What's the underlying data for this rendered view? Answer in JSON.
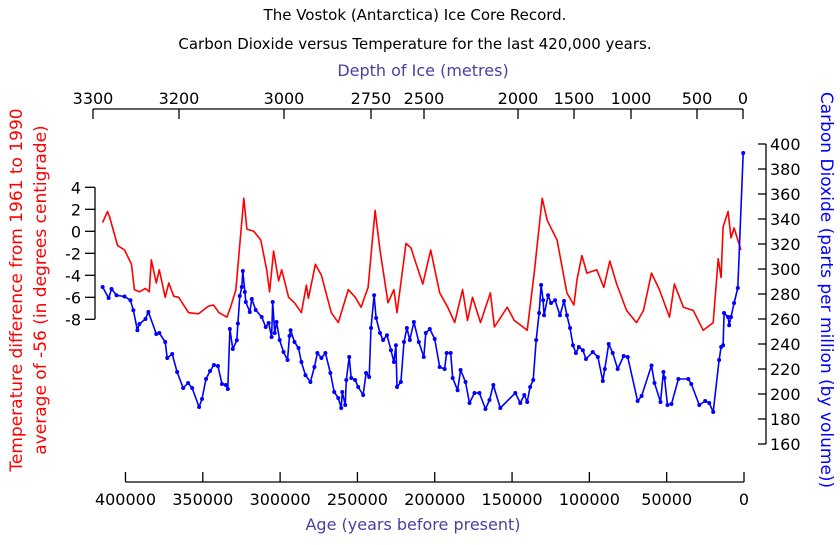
{
  "title": "The Vostok (Antarctica) Ice Core Record.",
  "subtitle": "Carbon Dioxide versus Temperature for the last 420,000 years.",
  "chart_data": {
    "type": "line",
    "title": "The Vostok (Antarctica) Ice Core Record.",
    "subtitle": "Carbon Dioxide versus Temperature for the last 420,000 years.",
    "xlabel": "Age (years before present)",
    "x2label": "Depth of Ice (metres)",
    "ylabel_left_line1": "Temperature difference from 1961 to 1990",
    "ylabel_left_line2": "average of -56 (in degrees centigrade)",
    "ylabel_right": "Carbon Dioxide (parts per million (by volume))",
    "xlim": [
      400000,
      0
    ],
    "ylim_left": [
      -8,
      4
    ],
    "ylim_right": [
      160,
      400
    ],
    "grid": false,
    "legend": "none",
    "x_ticks": [
      "400000",
      "350000",
      "300000",
      "250000",
      "200000",
      "150000",
      "100000",
      "50000",
      "0"
    ],
    "x2_ticks": [
      "3300",
      "3200",
      "3000",
      "2750",
      "2500",
      "2000",
      "1500",
      "1000",
      "500",
      "0"
    ],
    "y_left_ticks": [
      "4",
      "2",
      "0",
      "-2",
      "-4",
      "-6",
      "-8"
    ],
    "y_right_ticks": [
      "400",
      "380",
      "360",
      "340",
      "320",
      "300",
      "280",
      "260",
      "240",
      "220",
      "200",
      "180",
      "160"
    ],
    "colors": {
      "temperature": "#ff0000",
      "co2": "#0000ff",
      "axis_label": "#4b3fa0"
    },
    "series": [
      {
        "axis": "left",
        "color": "#ff0000",
        "points": [
          [
            414800,
            0.8
          ],
          [
            411600,
            1.8
          ],
          [
            410300,
            1.3
          ],
          [
            405100,
            -1.3
          ],
          [
            400600,
            -1.7
          ],
          [
            396100,
            -3
          ],
          [
            394200,
            -5.3
          ],
          [
            391000,
            -5.5
          ],
          [
            387100,
            -5.2
          ],
          [
            384600,
            -5.5
          ],
          [
            383300,
            -2.6
          ],
          [
            380100,
            -4.7
          ],
          [
            378100,
            -3.5
          ],
          [
            374300,
            -6
          ],
          [
            372000,
            -4.7
          ],
          [
            368800,
            -5.9
          ],
          [
            365600,
            -6
          ],
          [
            359200,
            -7.4
          ],
          [
            352700,
            -7.5
          ],
          [
            346300,
            -6.8
          ],
          [
            343100,
            -6.7
          ],
          [
            339500,
            -7.4
          ],
          [
            334400,
            -7.8
          ],
          [
            332000,
            -6.9
          ],
          [
            328600,
            -5.3
          ],
          [
            323500,
            3.0
          ],
          [
            321500,
            0.2
          ],
          [
            317000,
            0
          ],
          [
            312500,
            -0.8
          ],
          [
            308700,
            -3.5
          ],
          [
            306800,
            -5.5
          ],
          [
            304200,
            -1.8
          ],
          [
            301000,
            -4.5
          ],
          [
            299000,
            -3.5
          ],
          [
            294500,
            -6
          ],
          [
            290700,
            -6.5
          ],
          [
            286200,
            -7.4
          ],
          [
            283000,
            -4.9
          ],
          [
            281700,
            -6.1
          ],
          [
            277200,
            -3
          ],
          [
            273300,
            -4
          ],
          [
            266900,
            -7.4
          ],
          [
            262400,
            -8.3
          ],
          [
            255900,
            -5.3
          ],
          [
            251400,
            -6
          ],
          [
            247600,
            -6.9
          ],
          [
            243100,
            -5.1
          ],
          [
            238600,
            1.9
          ],
          [
            235400,
            -1.7
          ],
          [
            230200,
            -6.5
          ],
          [
            226400,
            -5.3
          ],
          [
            224400,
            -7.4
          ],
          [
            218600,
            -1.1
          ],
          [
            215400,
            -1.5
          ],
          [
            207700,
            -4.8
          ],
          [
            202600,
            -1.7
          ],
          [
            196800,
            -5.6
          ],
          [
            191600,
            -6.9
          ],
          [
            187100,
            -8.3
          ],
          [
            182000,
            -5.3
          ],
          [
            178800,
            -8.1
          ],
          [
            175600,
            -6
          ],
          [
            170400,
            -8.3
          ],
          [
            164000,
            -5.6
          ],
          [
            161400,
            -8.7
          ],
          [
            153100,
            -6.9
          ],
          [
            148600,
            -8.1
          ],
          [
            140200,
            -9
          ],
          [
            135700,
            -3.8
          ],
          [
            130500,
            3
          ],
          [
            127300,
            1
          ],
          [
            120900,
            -0.8
          ],
          [
            114500,
            -5.6
          ],
          [
            110000,
            -6.7
          ],
          [
            108000,
            -4.4
          ],
          [
            104800,
            -2.2
          ],
          [
            101600,
            -3.8
          ],
          [
            95200,
            -3.5
          ],
          [
            90700,
            -5.1
          ],
          [
            86800,
            -2.7
          ],
          [
            82300,
            -4.8
          ],
          [
            75900,
            -7.2
          ],
          [
            69500,
            -8.3
          ],
          [
            65000,
            -7.2
          ],
          [
            59800,
            -3.8
          ],
          [
            54700,
            -5.3
          ],
          [
            48200,
            -7.8
          ],
          [
            45000,
            -4.8
          ],
          [
            39200,
            -6.9
          ],
          [
            32800,
            -7.2
          ],
          [
            26400,
            -9
          ],
          [
            19900,
            -8.3
          ],
          [
            16700,
            -2.5
          ],
          [
            14800,
            -4.2
          ],
          [
            13500,
            0.4
          ],
          [
            10300,
            1.8
          ],
          [
            8400,
            -0.6
          ],
          [
            6400,
            0.3
          ],
          [
            2000,
            -1.7
          ]
        ]
      },
      {
        "axis": "right",
        "color": "#0000ff",
        "points": [
          [
            414800,
            285.6
          ],
          [
            410900,
            276.8
          ],
          [
            409000,
            284
          ],
          [
            405800,
            279
          ],
          [
            400600,
            278
          ],
          [
            396800,
            275
          ],
          [
            394900,
            267
          ],
          [
            392300,
            251
          ],
          [
            391000,
            256
          ],
          [
            387100,
            260
          ],
          [
            385200,
            265.6
          ],
          [
            380100,
            248
          ],
          [
            378100,
            248.8
          ],
          [
            374300,
            241.6
          ],
          [
            373000,
            228.8
          ],
          [
            369800,
            232
          ],
          [
            366600,
            217.6
          ],
          [
            362700,
            204.8
          ],
          [
            359500,
            208.8
          ],
          [
            356900,
            204.8
          ],
          [
            352400,
            189.6
          ],
          [
            350500,
            196
          ],
          [
            347900,
            212
          ],
          [
            345300,
            218.4
          ],
          [
            342800,
            223.2
          ],
          [
            340200,
            222.4
          ],
          [
            337600,
            208
          ],
          [
            335100,
            207.2
          ],
          [
            333800,
            204
          ],
          [
            332500,
            252
          ],
          [
            330600,
            236
          ],
          [
            328000,
            243
          ],
          [
            327300,
            256.4
          ],
          [
            326100,
            278.4
          ],
          [
            324800,
            285.6
          ],
          [
            324100,
            298.4
          ],
          [
            322800,
            281.6
          ],
          [
            322200,
            273.6
          ],
          [
            319600,
            265.6
          ],
          [
            318300,
            276
          ],
          [
            315800,
            267.2
          ],
          [
            311900,
            261.6
          ],
          [
            309300,
            253.6
          ],
          [
            307400,
            256.8
          ],
          [
            305500,
            245.6
          ],
          [
            304800,
            273.6
          ],
          [
            303500,
            248.8
          ],
          [
            302300,
            257.6
          ],
          [
            300300,
            243.2
          ],
          [
            297800,
            233.6
          ],
          [
            295200,
            227.2
          ],
          [
            293900,
            246.4
          ],
          [
            293200,
            251
          ],
          [
            290700,
            241.6
          ],
          [
            288100,
            236.8
          ],
          [
            286200,
            225.6
          ],
          [
            283600,
            215
          ],
          [
            280400,
            209.6
          ],
          [
            277800,
            221.6
          ],
          [
            275900,
            232.8
          ],
          [
            273300,
            228.8
          ],
          [
            270700,
            232.8
          ],
          [
            267500,
            216.8
          ],
          [
            265000,
            201.6
          ],
          [
            262400,
            196.8
          ],
          [
            260500,
            188.8
          ],
          [
            259800,
            201.6
          ],
          [
            257900,
            191.2
          ],
          [
            257200,
            211.2
          ],
          [
            255300,
            229.6
          ],
          [
            254000,
            212.8
          ],
          [
            251500,
            211.2
          ],
          [
            249500,
            205.6
          ],
          [
            246300,
            199.2
          ],
          [
            244400,
            216.8
          ],
          [
            242400,
            213.6
          ],
          [
            241200,
            252.8
          ],
          [
            239200,
            279
          ],
          [
            237900,
            260.8
          ],
          [
            235400,
            248.8
          ],
          [
            233400,
            243.2
          ],
          [
            230900,
            247
          ],
          [
            228300,
            235
          ],
          [
            226400,
            225.6
          ],
          [
            225100,
            239
          ],
          [
            224400,
            205.6
          ],
          [
            221900,
            209.6
          ],
          [
            219900,
            241.6
          ],
          [
            218000,
            252.8
          ],
          [
            216100,
            243.2
          ],
          [
            213500,
            257.6
          ],
          [
            210300,
            241.6
          ],
          [
            207100,
            229.6
          ],
          [
            205800,
            248.8
          ],
          [
            203200,
            252
          ],
          [
            200000,
            244
          ],
          [
            196800,
            221.6
          ],
          [
            193600,
            220
          ],
          [
            192300,
            232.8
          ],
          [
            189700,
            232.8
          ],
          [
            188400,
            212.8
          ],
          [
            185200,
            203
          ],
          [
            183300,
            219.2
          ],
          [
            180100,
            209.6
          ],
          [
            177500,
            192.8
          ],
          [
            174300,
            200.8
          ],
          [
            171100,
            200.8
          ],
          [
            167200,
            188
          ],
          [
            164600,
            195.2
          ],
          [
            162100,
            207.2
          ],
          [
            157600,
            188.8
          ],
          [
            147900,
            200.8
          ],
          [
            144700,
            192.8
          ],
          [
            142100,
            199.2
          ],
          [
            140200,
            193.6
          ],
          [
            138300,
            205.6
          ],
          [
            136300,
            211.2
          ],
          [
            134400,
            243.2
          ],
          [
            132500,
            264.8
          ],
          [
            131200,
            287.2
          ],
          [
            129900,
            275
          ],
          [
            129300,
            263
          ],
          [
            126700,
            279
          ],
          [
            124800,
            272.8
          ],
          [
            122200,
            275
          ],
          [
            119000,
            263
          ],
          [
            116400,
            274.4
          ],
          [
            114500,
            263
          ],
          [
            112500,
            252.8
          ],
          [
            110600,
            239
          ],
          [
            108700,
            232.8
          ],
          [
            106800,
            237.6
          ],
          [
            104200,
            235
          ],
          [
            102200,
            228
          ],
          [
            97800,
            233.6
          ],
          [
            94500,
            229.6
          ],
          [
            91300,
            210.4
          ],
          [
            90000,
            220
          ],
          [
            87500,
            240
          ],
          [
            84900,
            232.8
          ],
          [
            81700,
            220
          ],
          [
            77800,
            230.4
          ],
          [
            75200,
            229.6
          ],
          [
            68800,
            194.4
          ],
          [
            66200,
            198.4
          ],
          [
            59800,
            222.8
          ],
          [
            57900,
            208.8
          ],
          [
            54000,
            193.6
          ],
          [
            52100,
            217.6
          ],
          [
            51400,
            212.8
          ],
          [
            49500,
            191.2
          ],
          [
            46900,
            192
          ],
          [
            42400,
            212
          ],
          [
            36000,
            212
          ],
          [
            34100,
            208
          ],
          [
            28900,
            191.2
          ],
          [
            25100,
            194.4
          ],
          [
            22500,
            192.8
          ],
          [
            19900,
            185.6
          ],
          [
            16100,
            227.2
          ],
          [
            14800,
            237.6
          ],
          [
            13500,
            239
          ],
          [
            12900,
            264.8
          ],
          [
            10300,
            261.6
          ],
          [
            9600,
            255
          ],
          [
            8400,
            261.6
          ],
          [
            6400,
            272.8
          ],
          [
            4000,
            284.8
          ],
          [
            500,
            392.8
          ]
        ]
      }
    ]
  }
}
